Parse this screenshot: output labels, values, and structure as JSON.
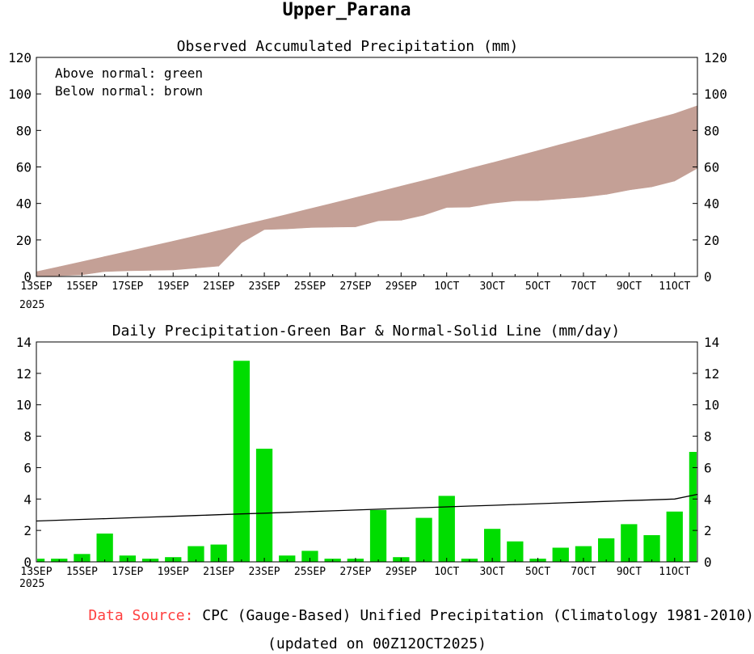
{
  "title": "Upper_Parana",
  "footer": {
    "source_label": "Data Source:",
    "source_text": "CPC (Gauge-Based) Unified Precipitation (Climatology 1981-2010)",
    "updated": "(updated on 00Z12OCT2025)"
  },
  "colors": {
    "below_normal": "#c4a096",
    "above_normal": "#00dd00",
    "bar": "#00dd00",
    "normal_line": "#000000",
    "source_label": "#ff4040"
  },
  "chart_data": [
    {
      "type": "area",
      "title": "Observed Accumulated Precipitation (mm)",
      "legend_text": [
        "Above normal: green",
        "Below normal: brown"
      ],
      "x_tick_labels": [
        "13SEP",
        "15SEP",
        "17SEP",
        "19SEP",
        "21SEP",
        "23SEP",
        "25SEP",
        "27SEP",
        "29SEP",
        "1OCT",
        "3OCT",
        "5OCT",
        "7OCT",
        "9OCT",
        "11OCT"
      ],
      "x_year_label": "2025",
      "ylim": [
        0,
        120
      ],
      "yticks": [
        0,
        20,
        40,
        60,
        80,
        100,
        120
      ],
      "x": [
        "13SEP",
        "14SEP",
        "15SEP",
        "16SEP",
        "17SEP",
        "18SEP",
        "19SEP",
        "20SEP",
        "21SEP",
        "22SEP",
        "23SEP",
        "24SEP",
        "25SEP",
        "26SEP",
        "27SEP",
        "28SEP",
        "29SEP",
        "30SEP",
        "1OCT",
        "2OCT",
        "3OCT",
        "4OCT",
        "5OCT",
        "6OCT",
        "7OCT",
        "8OCT",
        "9OCT",
        "10OCT",
        "11OCT",
        "12OCT"
      ],
      "series": [
        {
          "name": "observed",
          "values": [
            0.2,
            0.4,
            0.9,
            2.7,
            3.1,
            3.3,
            3.6,
            4.6,
            5.7,
            18.5,
            25.7,
            26.1,
            26.8,
            27.0,
            27.2,
            30.5,
            30.8,
            33.6,
            37.8,
            38.0,
            40.1,
            41.4,
            41.6,
            42.5,
            43.5,
            45.0,
            47.4,
            49.1,
            52.3,
            59.3
          ]
        },
        {
          "name": "normal",
          "values": [
            2.6,
            5.3,
            8.1,
            10.9,
            13.7,
            16.5,
            19.3,
            22.2,
            25.1,
            28.1,
            31.0,
            34.0,
            37.1,
            40.1,
            43.2,
            46.3,
            49.5,
            52.6,
            55.8,
            59.1,
            62.3,
            65.6,
            68.9,
            72.3,
            75.6,
            79.0,
            82.4,
            85.8,
            89.2,
            93.5
          ]
        }
      ]
    },
    {
      "type": "bar",
      "title": "Daily Precipitation-Green Bar & Normal-Solid Line (mm/day)",
      "x_tick_labels": [
        "13SEP",
        "15SEP",
        "17SEP",
        "19SEP",
        "21SEP",
        "23SEP",
        "25SEP",
        "27SEP",
        "29SEP",
        "1OCT",
        "3OCT",
        "5OCT",
        "7OCT",
        "9OCT",
        "11OCT"
      ],
      "x_year_label": "2025",
      "ylim": [
        0,
        14
      ],
      "yticks": [
        0,
        2,
        4,
        6,
        8,
        10,
        12,
        14
      ],
      "categories": [
        "13SEP",
        "14SEP",
        "15SEP",
        "16SEP",
        "17SEP",
        "18SEP",
        "19SEP",
        "20SEP",
        "21SEP",
        "22SEP",
        "23SEP",
        "24SEP",
        "25SEP",
        "26SEP",
        "27SEP",
        "28SEP",
        "29SEP",
        "30SEP",
        "1OCT",
        "2OCT",
        "3OCT",
        "4OCT",
        "5OCT",
        "6OCT",
        "7OCT",
        "8OCT",
        "9OCT",
        "10OCT",
        "11OCT",
        "12OCT"
      ],
      "series": [
        {
          "name": "daily",
          "values": [
            0.2,
            0.2,
            0.5,
            1.8,
            0.4,
            0.2,
            0.3,
            1.0,
            1.1,
            12.8,
            7.2,
            0.4,
            0.7,
            0.2,
            0.2,
            3.3,
            0.3,
            2.8,
            4.2,
            0.2,
            2.1,
            1.3,
            0.2,
            0.9,
            1.0,
            1.5,
            2.4,
            1.7,
            3.2,
            7.0
          ]
        },
        {
          "name": "normal",
          "values": [
            2.6,
            2.65,
            2.7,
            2.75,
            2.8,
            2.85,
            2.9,
            2.95,
            3.0,
            3.05,
            3.1,
            3.15,
            3.2,
            3.25,
            3.3,
            3.35,
            3.4,
            3.45,
            3.5,
            3.55,
            3.6,
            3.65,
            3.7,
            3.75,
            3.8,
            3.85,
            3.9,
            3.95,
            4.0,
            4.3
          ]
        }
      ]
    }
  ]
}
